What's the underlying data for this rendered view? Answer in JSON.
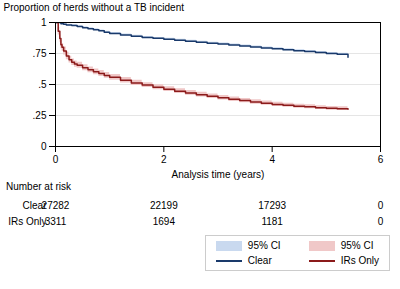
{
  "chart_data": {
    "type": "step",
    "xlabel": "Analysis time (years)",
    "ylabel": "Proportion of herds without a TB incident",
    "xlim": [
      0,
      6
    ],
    "ylim": [
      0,
      1
    ],
    "xticks": [
      0,
      2,
      4,
      6
    ],
    "yticks": [
      0,
      {
        "value": 0.25,
        "label": ".25"
      },
      {
        "value": 0.5,
        "label": ".5"
      },
      {
        "value": 0.75,
        "label": ".75"
      },
      1
    ],
    "grid": true,
    "legend": "lower right",
    "series": [
      {
        "name": "Clear",
        "color": "#1a3a6b",
        "ci_color": "#c9d9ef",
        "ci_label": "95% CI",
        "x": [
          0,
          0.02,
          0.05,
          0.1,
          0.15,
          0.2,
          0.3,
          0.4,
          0.5,
          0.6,
          0.7,
          0.8,
          0.9,
          1.0,
          1.2,
          1.4,
          1.6,
          1.8,
          2.0,
          2.2,
          2.4,
          2.6,
          2.8,
          3.0,
          3.2,
          3.4,
          3.6,
          3.8,
          4.0,
          4.2,
          4.4,
          4.6,
          4.8,
          5.0,
          5.2,
          5.4
        ],
        "values": [
          1.0,
          1.0,
          1.0,
          0.99,
          0.985,
          0.98,
          0.975,
          0.967,
          0.958,
          0.95,
          0.942,
          0.933,
          0.922,
          0.912,
          0.9,
          0.89,
          0.88,
          0.872,
          0.864,
          0.857,
          0.849,
          0.841,
          0.833,
          0.826,
          0.818,
          0.81,
          0.802,
          0.795,
          0.788,
          0.78,
          0.773,
          0.766,
          0.758,
          0.751,
          0.743,
          0.72
        ],
        "ci_upper": [
          1.0,
          1.0,
          1.0,
          0.995,
          0.99,
          0.986,
          0.982,
          0.974,
          0.965,
          0.957,
          0.949,
          0.94,
          0.929,
          0.919,
          0.908,
          0.898,
          0.888,
          0.88,
          0.872,
          0.864,
          0.857,
          0.849,
          0.841,
          0.834,
          0.826,
          0.818,
          0.81,
          0.803,
          0.796,
          0.788,
          0.781,
          0.774,
          0.766,
          0.759,
          0.752,
          0.728
        ],
        "ci_lower": [
          1.0,
          1.0,
          1.0,
          0.985,
          0.98,
          0.974,
          0.968,
          0.96,
          0.951,
          0.943,
          0.935,
          0.926,
          0.915,
          0.905,
          0.892,
          0.882,
          0.872,
          0.864,
          0.856,
          0.85,
          0.841,
          0.833,
          0.825,
          0.818,
          0.81,
          0.802,
          0.794,
          0.787,
          0.78,
          0.772,
          0.765,
          0.758,
          0.75,
          0.743,
          0.734,
          0.712
        ]
      },
      {
        "name": "IRs Only",
        "color": "#8b1a1a",
        "ci_color": "#f0c8c8",
        "ci_label": "95% CI",
        "x": [
          0,
          0.02,
          0.05,
          0.08,
          0.1,
          0.12,
          0.15,
          0.2,
          0.25,
          0.3,
          0.35,
          0.4,
          0.5,
          0.6,
          0.7,
          0.8,
          0.9,
          1.0,
          1.2,
          1.4,
          1.6,
          1.8,
          2.0,
          2.2,
          2.4,
          2.6,
          2.8,
          3.0,
          3.2,
          3.4,
          3.6,
          3.8,
          4.0,
          4.2,
          4.4,
          4.6,
          4.8,
          5.0,
          5.2,
          5.4
        ],
        "values": [
          1.0,
          1.0,
          0.93,
          0.87,
          0.82,
          0.8,
          0.77,
          0.73,
          0.7,
          0.68,
          0.665,
          0.655,
          0.635,
          0.618,
          0.602,
          0.588,
          0.573,
          0.558,
          0.534,
          0.513,
          0.495,
          0.478,
          0.462,
          0.446,
          0.432,
          0.418,
          0.405,
          0.393,
          0.381,
          0.37,
          0.359,
          0.349,
          0.339,
          0.333,
          0.325,
          0.32,
          0.313,
          0.308,
          0.305,
          0.3
        ],
        "ci_upper": [
          1.0,
          1.0,
          0.96,
          0.9,
          0.852,
          0.83,
          0.802,
          0.76,
          0.727,
          0.706,
          0.69,
          0.679,
          0.659,
          0.642,
          0.626,
          0.612,
          0.596,
          0.581,
          0.556,
          0.534,
          0.515,
          0.498,
          0.481,
          0.465,
          0.451,
          0.437,
          0.423,
          0.411,
          0.399,
          0.388,
          0.377,
          0.366,
          0.356,
          0.349,
          0.341,
          0.336,
          0.328,
          0.323,
          0.32,
          0.316
        ],
        "ci_lower": [
          1.0,
          1.0,
          0.9,
          0.84,
          0.788,
          0.77,
          0.738,
          0.7,
          0.673,
          0.654,
          0.64,
          0.631,
          0.611,
          0.594,
          0.578,
          0.564,
          0.55,
          0.535,
          0.512,
          0.492,
          0.475,
          0.458,
          0.443,
          0.427,
          0.413,
          0.399,
          0.387,
          0.375,
          0.363,
          0.352,
          0.341,
          0.332,
          0.322,
          0.317,
          0.309,
          0.304,
          0.298,
          0.293,
          0.29,
          0.284
        ]
      }
    ],
    "number_at_risk": {
      "label": "Number at risk",
      "rows": [
        {
          "name": "Clear",
          "times": [
            0,
            2,
            4,
            6
          ],
          "values": [
            27282,
            22199,
            17293,
            0
          ]
        },
        {
          "name": "IRs Only",
          "times": [
            0,
            2,
            4,
            6
          ],
          "values": [
            3311,
            1694,
            1181,
            0
          ]
        }
      ]
    }
  }
}
